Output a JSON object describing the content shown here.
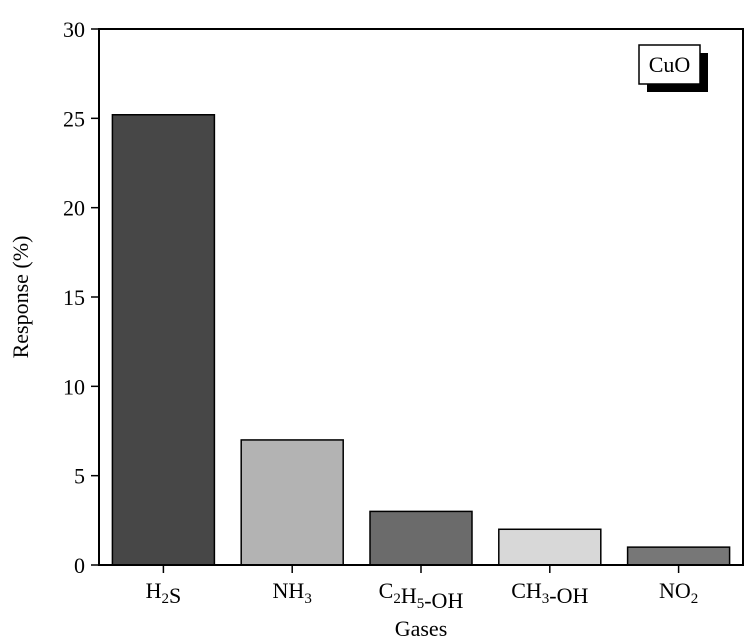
{
  "chart_data": {
    "type": "bar",
    "categories": [
      {
        "base": "H",
        "sub": "2",
        "rest": "S"
      },
      {
        "base": "NH",
        "sub": "3",
        "rest": ""
      },
      {
        "base": "C",
        "sub": "2",
        "mid": "H",
        "sub2": "5",
        "rest": "-OH"
      },
      {
        "base": "CH",
        "sub": "3",
        "rest": "-OH"
      },
      {
        "base": "NO",
        "sub": "2",
        "rest": ""
      }
    ],
    "values": [
      25.2,
      7.0,
      3.0,
      2.0,
      1.0
    ],
    "bar_colors": [
      "#474747",
      "#b3b3b3",
      "#6b6b6b",
      "#d8d8d8",
      "#777777"
    ],
    "xlabel": "Gases",
    "ylabel": "Response (%)",
    "ylim": [
      0,
      30
    ],
    "yticks": [
      "0",
      "5",
      "10",
      "15",
      "20",
      "25",
      "30"
    ],
    "legend_label": "CuO",
    "legend_position": "top-right",
    "grid": false
  }
}
